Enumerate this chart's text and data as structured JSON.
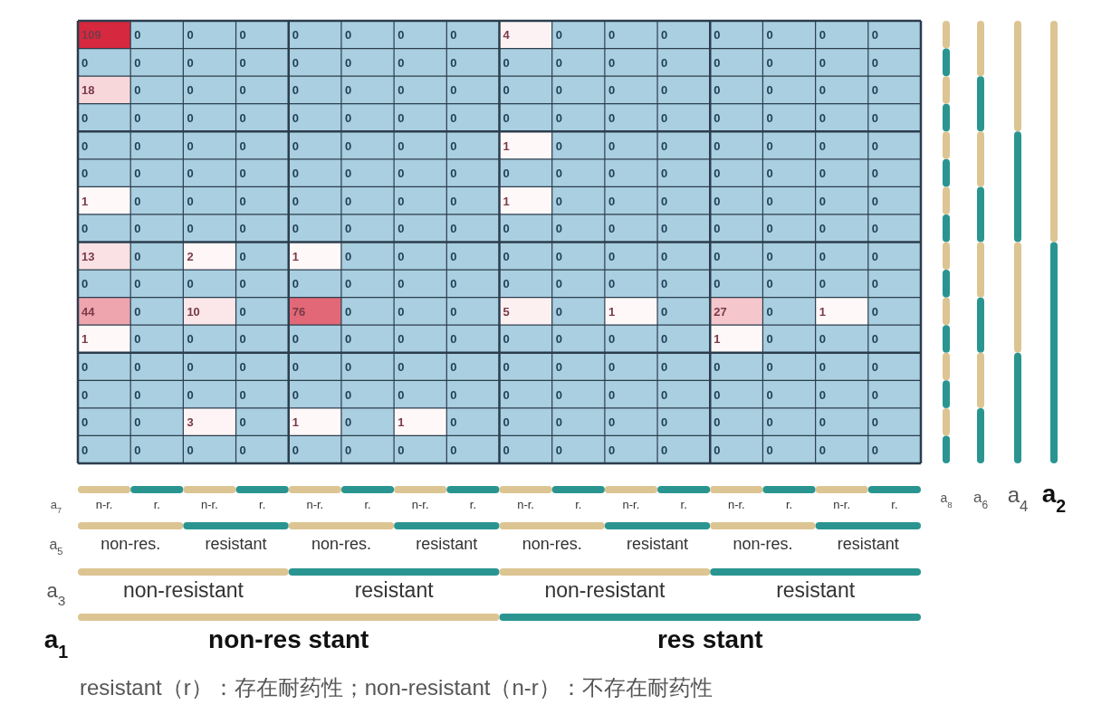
{
  "chart_data": {
    "type": "heatmap",
    "categories": [
      "n-r.",
      "r.",
      "n-r.",
      "r.",
      "n-r.",
      "r.",
      "n-r.",
      "r.",
      "n-r.",
      "r.",
      "n-r.",
      "r.",
      "n-r.",
      "r.",
      "n-r.",
      "r."
    ],
    "y_categories": [
      null,
      null,
      null,
      null,
      null,
      null,
      null,
      null,
      null,
      null,
      null,
      null,
      null,
      null,
      null,
      null
    ],
    "cells": [
      [
        109,
        0,
        0,
        0,
        0,
        0,
        0,
        0,
        4,
        0,
        0,
        0,
        0,
        0,
        0,
        0
      ],
      [
        0,
        0,
        0,
        0,
        0,
        0,
        0,
        0,
        0,
        0,
        0,
        0,
        0,
        0,
        0,
        0
      ],
      [
        18,
        0,
        0,
        0,
        0,
        0,
        0,
        0,
        0,
        0,
        0,
        0,
        0,
        0,
        0,
        0
      ],
      [
        0,
        0,
        0,
        0,
        0,
        0,
        0,
        0,
        0,
        0,
        0,
        0,
        0,
        0,
        0,
        0
      ],
      [
        0,
        0,
        0,
        0,
        0,
        0,
        0,
        0,
        1,
        0,
        0,
        0,
        0,
        0,
        0,
        0
      ],
      [
        0,
        0,
        0,
        0,
        0,
        0,
        0,
        0,
        0,
        0,
        0,
        0,
        0,
        0,
        0,
        0
      ],
      [
        1,
        0,
        0,
        0,
        0,
        0,
        0,
        0,
        1,
        0,
        0,
        0,
        0,
        0,
        0,
        0
      ],
      [
        0,
        0,
        0,
        0,
        0,
        0,
        0,
        0,
        0,
        0,
        0,
        0,
        0,
        0,
        0,
        0
      ],
      [
        13,
        0,
        2,
        0,
        1,
        0,
        0,
        0,
        0,
        0,
        0,
        0,
        0,
        0,
        0,
        0
      ],
      [
        0,
        0,
        0,
        0,
        0,
        0,
        0,
        0,
        0,
        0,
        0,
        0,
        0,
        0,
        0,
        0
      ],
      [
        44,
        0,
        10,
        0,
        76,
        0,
        0,
        0,
        5,
        0,
        1,
        0,
        27,
        0,
        1,
        0
      ],
      [
        1,
        0,
        0,
        0,
        0,
        0,
        0,
        0,
        0,
        0,
        0,
        0,
        1,
        0,
        0,
        0
      ],
      [
        0,
        0,
        0,
        0,
        0,
        0,
        0,
        0,
        0,
        0,
        0,
        0,
        0,
        0,
        0,
        0
      ],
      [
        0,
        0,
        0,
        0,
        0,
        0,
        0,
        0,
        0,
        0,
        0,
        0,
        0,
        0,
        0,
        0
      ],
      [
        0,
        0,
        3,
        0,
        1,
        0,
        1,
        0,
        0,
        0,
        0,
        0,
        0,
        0,
        0,
        0
      ],
      [
        0,
        0,
        0,
        0,
        0,
        0,
        0,
        0,
        0,
        0,
        0,
        0,
        0,
        0,
        0,
        0
      ]
    ],
    "data_labels": true,
    "annotations": [
      "non-res.",
      "resistant",
      "non-res.",
      "resistant",
      "non-res.",
      "resistant",
      "non-res.",
      "resistant",
      "non-resistant",
      "resistant",
      "non-resistant",
      "resistant",
      "non-res stant",
      "res stant",
      "a$_{7}$",
      "a$_{5}$",
      "a$_{3}$",
      "a$_{1}$",
      "a$_{8}$",
      "a$_{6}$",
      "a$_{4}$",
      "a$_{2}$",
      "resistant（r）：存在耐药性；non-resistant（n-r）：不存在耐药性"
    ]
  }
}
